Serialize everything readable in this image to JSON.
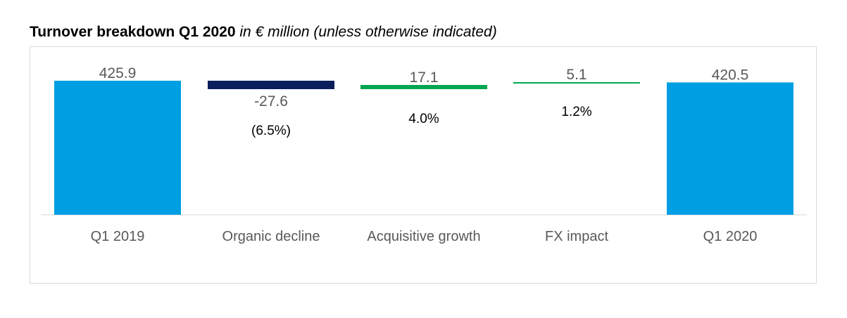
{
  "title": {
    "main": "Turnover breakdown Q1 2020",
    "sub": "in € million (unless otherwise indicated)"
  },
  "chart_data": {
    "type": "bar",
    "subtype": "waterfall",
    "categories": [
      "Q1 2019",
      "Organic decline",
      "Acquisitive growth",
      "FX impact",
      "Q1 2020"
    ],
    "values": [
      425.9,
      -27.6,
      17.1,
      5.1,
      420.5
    ],
    "value_labels": [
      "425.9",
      "-27.6",
      "17.1",
      "5.1",
      "420.5"
    ],
    "percent_labels": [
      "",
      "(6.5%)",
      "4.0%",
      "1.2%",
      ""
    ],
    "bar_kinds": [
      "total",
      "delta",
      "delta",
      "delta",
      "total"
    ],
    "colors": [
      "#009FE3",
      "#0A1F5C",
      "#00A651",
      "#00A651",
      "#009FE3"
    ],
    "grid": false,
    "legend": "none"
  }
}
